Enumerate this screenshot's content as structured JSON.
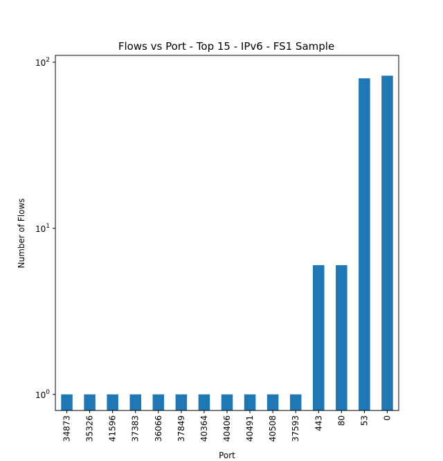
{
  "chart_data": {
    "type": "bar",
    "title": "Flows vs Port - Top 15 - IPv6 - FS1 Sample",
    "xlabel": "Port",
    "ylabel": "Number of Flows",
    "yscale": "log",
    "ylim": [
      0.8,
      110
    ],
    "grid": false,
    "bar_color": "#1f77b4",
    "categories": [
      "34873",
      "35326",
      "41596",
      "37383",
      "36066",
      "37849",
      "40364",
      "40406",
      "40491",
      "40508",
      "37593",
      "443",
      "80",
      "53",
      "0"
    ],
    "values": [
      1,
      1,
      1,
      1,
      1,
      1,
      1,
      1,
      1,
      1,
      1,
      6,
      6,
      80,
      83
    ],
    "yticks": [
      {
        "value": 1,
        "base": "10",
        "exp": "0"
      },
      {
        "value": 10,
        "base": "10",
        "exp": "1"
      },
      {
        "value": 100,
        "base": "10",
        "exp": "2"
      }
    ]
  }
}
